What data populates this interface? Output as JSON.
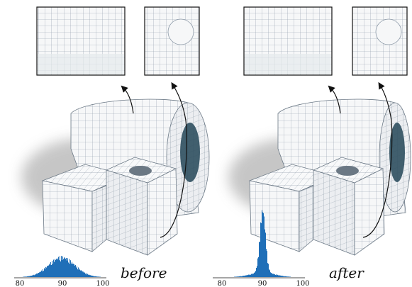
{
  "panels": [
    {
      "id": "before",
      "caption": "before",
      "histogram": {
        "ticks": [
          "80",
          "90",
          "100"
        ],
        "tick_values": [
          80,
          90,
          100
        ],
        "shape": "broad",
        "peak_value": 90
      }
    },
    {
      "id": "after",
      "caption": "after",
      "histogram": {
        "ticks": [
          "80",
          "90",
          "100"
        ],
        "tick_values": [
          80,
          90,
          100
        ],
        "shape": "sharp",
        "peak_value": 90
      }
    }
  ],
  "colors": {
    "histogram": "#1f6fb8",
    "mesh_line": "#7a8a9a",
    "part_fill": "#f4f5f7",
    "shadow": "#c9c9c9",
    "hole": "#2f4f5f"
  }
}
